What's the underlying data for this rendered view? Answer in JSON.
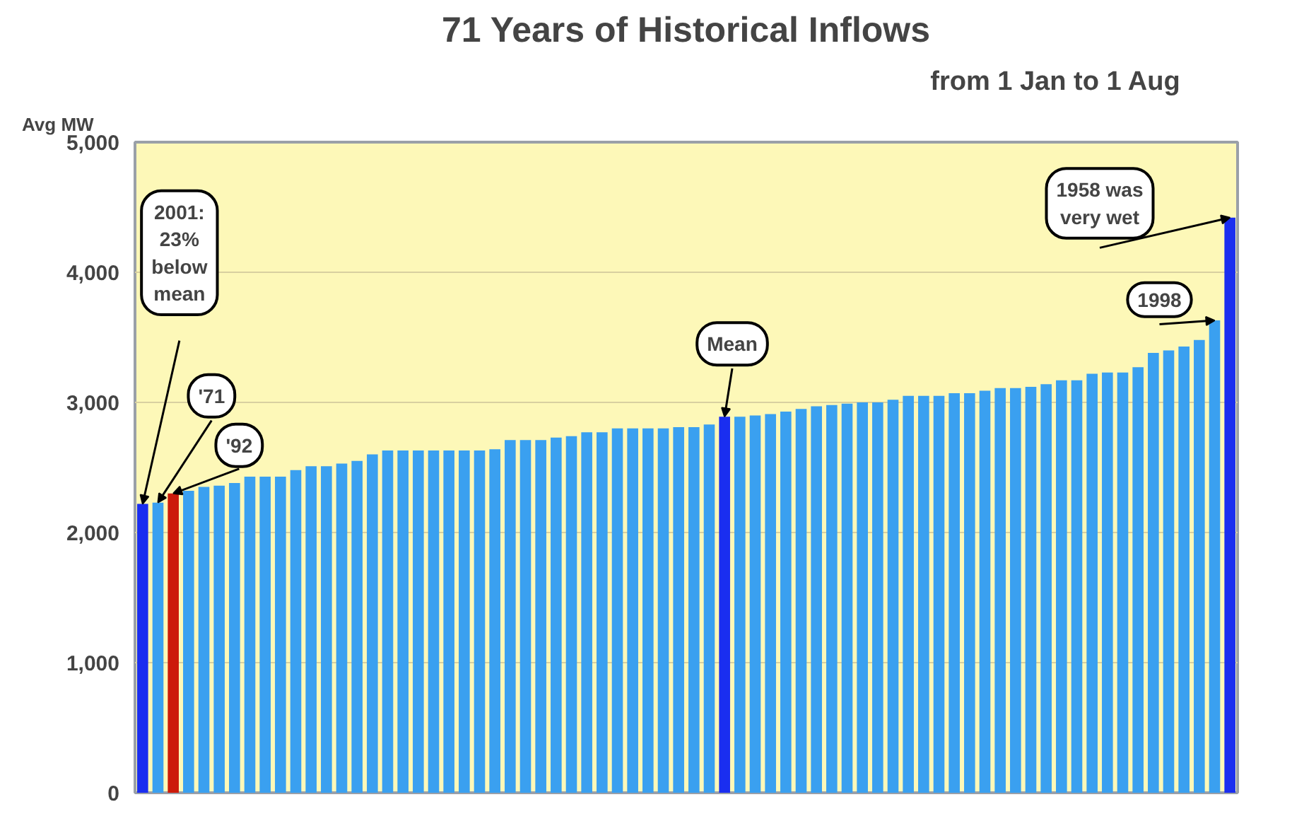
{
  "chart_data": {
    "type": "bar",
    "title": "71 Years of Historical Inflows",
    "subtitle": "from 1 Jan to 1 Aug",
    "ylabel": "Avg MW",
    "categories": [
      null,
      null,
      null,
      null,
      null,
      null,
      null,
      null,
      null,
      null,
      null,
      null,
      null,
      null,
      null,
      null,
      null,
      null,
      null,
      null,
      null,
      null,
      null,
      null,
      null,
      null,
      null,
      null,
      null,
      null,
      null,
      null,
      null,
      null,
      null,
      null,
      null,
      null,
      null,
      null,
      null,
      null,
      null,
      null,
      null,
      null,
      null,
      null,
      null,
      null,
      null,
      null,
      null,
      null,
      null,
      null,
      null,
      null,
      null,
      null,
      null,
      null,
      null,
      null,
      null,
      null,
      null,
      null,
      null,
      null,
      null,
      null
    ],
    "values": [
      2220,
      2230,
      2300,
      2320,
      2350,
      2360,
      2380,
      2430,
      2430,
      2430,
      2480,
      2510,
      2510,
      2530,
      2550,
      2600,
      2630,
      2630,
      2630,
      2630,
      2630,
      2630,
      2630,
      2640,
      2710,
      2710,
      2710,
      2730,
      2740,
      2770,
      2770,
      2800,
      2800,
      2800,
      2800,
      2810,
      2810,
      2830,
      2890,
      2890,
      2900,
      2910,
      2930,
      2950,
      2970,
      2980,
      2990,
      3000,
      3000,
      3020,
      3050,
      3050,
      3050,
      3070,
      3070,
      3090,
      3110,
      3110,
      3120,
      3140,
      3170,
      3170,
      3220,
      3230,
      3230,
      3270,
      3380,
      3400,
      3430,
      3480,
      3630,
      4420
    ],
    "colors": [
      "#1a2ef0",
      "#3aa0f0",
      "#cc1a0a",
      "#3aa0f0",
      "#3aa0f0",
      "#3aa0f0",
      "#3aa0f0",
      "#3aa0f0",
      "#3aa0f0",
      "#3aa0f0",
      "#3aa0f0",
      "#3aa0f0",
      "#3aa0f0",
      "#3aa0f0",
      "#3aa0f0",
      "#3aa0f0",
      "#3aa0f0",
      "#3aa0f0",
      "#3aa0f0",
      "#3aa0f0",
      "#3aa0f0",
      "#3aa0f0",
      "#3aa0f0",
      "#3aa0f0",
      "#3aa0f0",
      "#3aa0f0",
      "#3aa0f0",
      "#3aa0f0",
      "#3aa0f0",
      "#3aa0f0",
      "#3aa0f0",
      "#3aa0f0",
      "#3aa0f0",
      "#3aa0f0",
      "#3aa0f0",
      "#3aa0f0",
      "#3aa0f0",
      "#3aa0f0",
      "#1a2ef0",
      "#3aa0f0",
      "#3aa0f0",
      "#3aa0f0",
      "#3aa0f0",
      "#3aa0f0",
      "#3aa0f0",
      "#3aa0f0",
      "#3aa0f0",
      "#3aa0f0",
      "#3aa0f0",
      "#3aa0f0",
      "#3aa0f0",
      "#3aa0f0",
      "#3aa0f0",
      "#3aa0f0",
      "#3aa0f0",
      "#3aa0f0",
      "#3aa0f0",
      "#3aa0f0",
      "#3aa0f0",
      "#3aa0f0",
      "#3aa0f0",
      "#3aa0f0",
      "#3aa0f0",
      "#3aa0f0",
      "#3aa0f0",
      "#3aa0f0",
      "#3aa0f0",
      "#3aa0f0",
      "#3aa0f0",
      "#3aa0f0",
      "#3aa0f0",
      "#1a2ef0"
    ],
    "ylim": [
      0,
      5000
    ],
    "yticks": [
      {
        "value": 0,
        "label": "0"
      },
      {
        "value": 1000,
        "label": "1,000"
      },
      {
        "value": 2000,
        "label": "2,000"
      },
      {
        "value": 3000,
        "label": "3,000"
      },
      {
        "value": 4000,
        "label": "4,000"
      },
      {
        "value": 5000,
        "label": "5,000"
      }
    ],
    "grid": "y",
    "annotations": [
      "2001:\n23%\nbelow\nmean",
      "'71",
      "'92",
      "Mean",
      "1998",
      "1958 was\nvery wet"
    ]
  }
}
